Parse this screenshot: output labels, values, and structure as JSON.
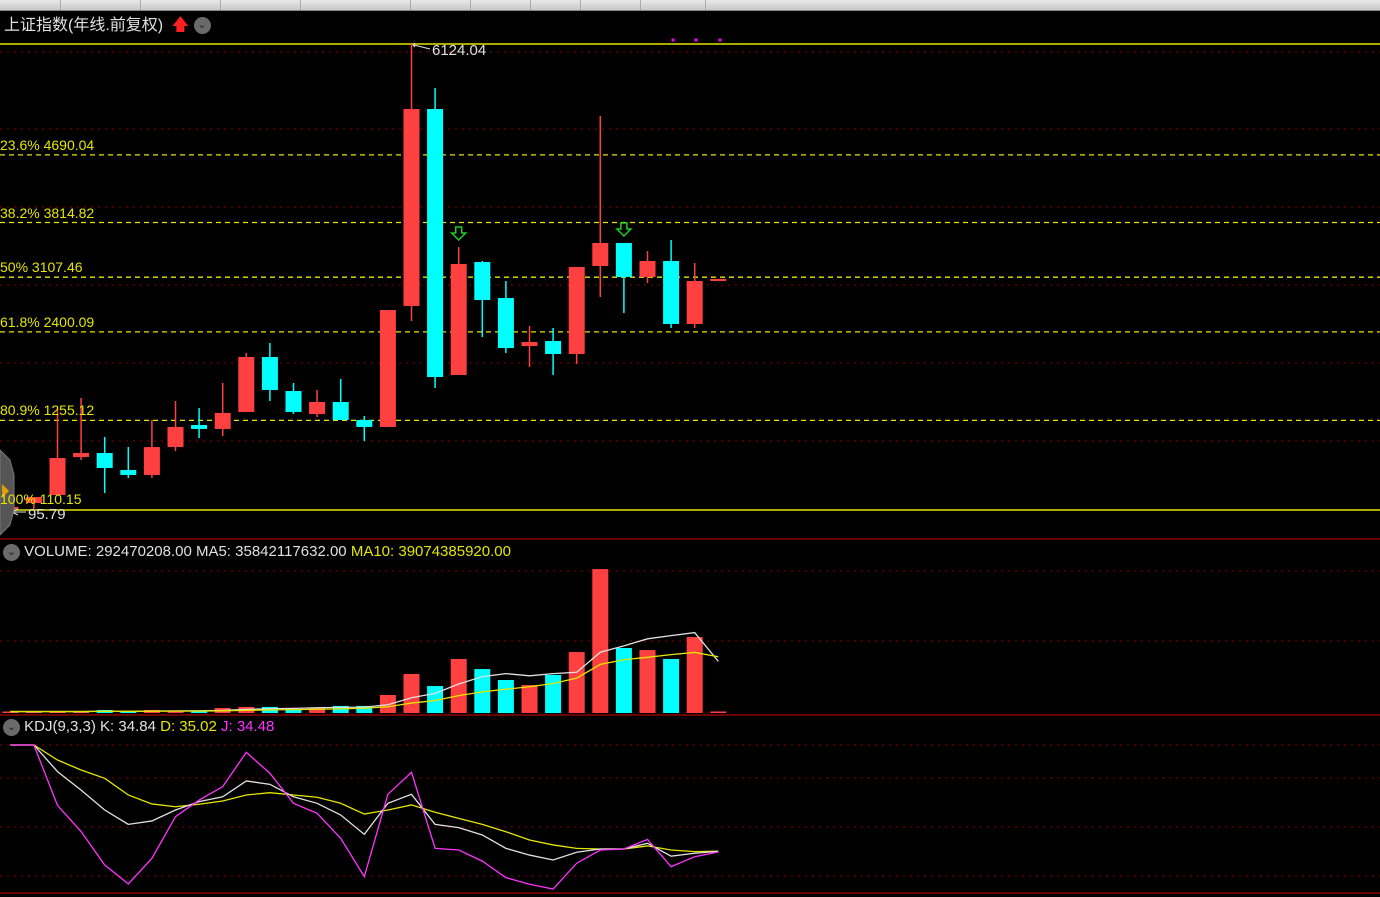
{
  "header": {
    "title": "上证指数(年线.前复权)",
    "trend_icon": "red-up-arrow-icon",
    "menu_icon": "chevron-down-icon"
  },
  "colors": {
    "up": "#ff4040",
    "down": "#00ffff",
    "fib_line": "#e6e600",
    "grid": "#8b0000",
    "ma5": "#e0e0e0",
    "ma10": "#e6e600",
    "k": "#e0e0e0",
    "d": "#e6e600",
    "j": "#ff33ff"
  },
  "price_panel": {
    "high_label": "6124.04",
    "low_label": "95.79",
    "fib_levels": [
      {
        "label": "23.6% 4690.04",
        "price": 4690.04
      },
      {
        "label": "38.2% 3814.82",
        "price": 3814.82
      },
      {
        "label": "50% 3107.46",
        "price": 3107.46
      },
      {
        "label": "61.8% 2400.09",
        "price": 2400.09
      },
      {
        "label": "80.9% 1255.12",
        "price": 1255.12
      },
      {
        "label": "100% 110.15",
        "price": 110.15
      }
    ],
    "sell_signal_icon": "green-down-arrow-icon"
  },
  "volume_panel": {
    "label": "VOLUME: 292470208.00",
    "ma5_label": "MA5: 35842117632.00",
    "ma10_label": "MA10: 39074385920.00"
  },
  "kdj_panel": {
    "label": "KDJ(9,3,3)",
    "k_label": "K: 34.84",
    "d_label": "D: 35.02",
    "j_label": "J: 34.48"
  },
  "chart_data": [
    {
      "type": "candlestick",
      "title": "上证指数(年线.前复权)",
      "ylim": [
        95.79,
        6124.04
      ],
      "grid": true,
      "candles": [
        {
          "o": 120,
          "h": 140,
          "l": 100,
          "c": 135
        },
        {
          "o": 186,
          "h": 264,
          "l": 96,
          "c": 264
        },
        {
          "o": 290,
          "h": 1415,
          "l": 290,
          "c": 768
        },
        {
          "o": 781,
          "h": 1545,
          "l": 743,
          "c": 833
        },
        {
          "o": 833,
          "h": 1040,
          "l": 316,
          "c": 639
        },
        {
          "o": 613,
          "h": 910,
          "l": 510,
          "c": 549
        },
        {
          "o": 549,
          "h": 1260,
          "l": 510,
          "c": 910
        },
        {
          "o": 910,
          "h": 1506,
          "l": 859,
          "c": 1170
        },
        {
          "o": 1195,
          "h": 1415,
          "l": 1027,
          "c": 1144
        },
        {
          "o": 1144,
          "h": 1739,
          "l": 1053,
          "c": 1351
        },
        {
          "o": 1364,
          "h": 2127,
          "l": 1364,
          "c": 2075
        },
        {
          "o": 2075,
          "h": 2256,
          "l": 1506,
          "c": 1648
        },
        {
          "o": 1635,
          "h": 1739,
          "l": 1338,
          "c": 1364
        },
        {
          "o": 1338,
          "h": 1648,
          "l": 1299,
          "c": 1493
        },
        {
          "o": 1493,
          "h": 1790,
          "l": 1260,
          "c": 1260
        },
        {
          "o": 1260,
          "h": 1312,
          "l": 988,
          "c": 1170
        },
        {
          "o": 1170,
          "h": 2683,
          "l": 1170,
          "c": 2683
        },
        {
          "o": 2735,
          "h": 6124.04,
          "l": 2541,
          "c": 5283
        },
        {
          "o": 5283,
          "h": 5555,
          "l": 1674,
          "c": 1816
        },
        {
          "o": 1842,
          "h": 3498,
          "l": 1842,
          "c": 3278
        },
        {
          "o": 3304,
          "h": 3317,
          "l": 2334,
          "c": 2812
        },
        {
          "o": 2838,
          "h": 3058,
          "l": 2127,
          "c": 2191
        },
        {
          "o": 2217,
          "h": 2476,
          "l": 1946,
          "c": 2269
        },
        {
          "o": 2282,
          "h": 2450,
          "l": 1842,
          "c": 2114
        },
        {
          "o": 2114,
          "h": 3239,
          "l": 1985,
          "c": 3239
        },
        {
          "o": 3252,
          "h": 5193,
          "l": 2851,
          "c": 3550
        },
        {
          "o": 3550,
          "h": 3550,
          "l": 2644,
          "c": 3110
        },
        {
          "o": 3110,
          "h": 3446,
          "l": 3032,
          "c": 3317
        },
        {
          "o": 3317,
          "h": 3588,
          "l": 2450,
          "c": 2502
        },
        {
          "o": 2502,
          "h": 3291,
          "l": 2450,
          "c": 3058
        },
        {
          "o": 3084,
          "h": 3084,
          "l": 3084,
          "c": 3084
        }
      ],
      "sell_signals": [
        19,
        26
      ]
    },
    {
      "type": "bar",
      "title": "VOLUME",
      "values": [
        1000000000.0,
        1000000000.0,
        1000000000.0,
        1000000000.0,
        2100000000.0,
        700000000.0,
        2100000000.0,
        1400000000.0,
        1400000000.0,
        3500000000.0,
        4200000000.0,
        4200000000.0,
        2800000000.0,
        3500000000.0,
        4900000000.0,
        4900000000.0,
        12500000000.0,
        27100000000.0,
        18700000000.0,
        37500000000.0,
        30500000000.0,
        22900000000.0,
        19400000000.0,
        26400000000.0,
        42300000000.0,
        99900000000.0,
        45100000000.0,
        43700000000.0,
        37500000000.0,
        52700000000.0,
        292470208
      ],
      "series": [
        {
          "name": "MA5",
          "computed_from": "values",
          "period": 5
        },
        {
          "name": "MA10",
          "computed_from": "values",
          "period": 10
        }
      ]
    },
    {
      "type": "line",
      "title": "KDJ(9,3,3)",
      "ylim": [
        0,
        100
      ],
      "series": [
        {
          "name": "K",
          "values": [
            100,
            100,
            83.7,
            72.4,
            60.2,
            51.4,
            53.5,
            60.2,
            65.3,
            68.3,
            78,
            75.9,
            68.3,
            64.3,
            57.1,
            45.3,
            64.3,
            69.8,
            51.4,
            49.4,
            44.9,
            36.7,
            32.6,
            29.6,
            34.3,
            36.3,
            36.3,
            39.8,
            31.9,
            33.7,
            34.84
          ]
        },
        {
          "name": "D",
          "values": [
            100,
            100,
            90.8,
            84.7,
            79.6,
            69.4,
            63.9,
            62.2,
            63.7,
            65.7,
            69.4,
            70.8,
            69.4,
            68,
            64.3,
            57.7,
            60.2,
            63.3,
            58.8,
            55.1,
            51.4,
            46.9,
            41.8,
            38.8,
            36.7,
            36.3,
            36.3,
            38.2,
            35.7,
            34.7,
            35.02
          ]
        },
        {
          "name": "J",
          "values": [
            100,
            100,
            63,
            47,
            26.5,
            14.9,
            30.6,
            56.1,
            66.3,
            74.5,
            95.5,
            82.7,
            64.3,
            58.2,
            42.9,
            19.4,
            69.8,
            83.3,
            36.7,
            35.7,
            28.9,
            18.8,
            14.7,
            11.8,
            27.6,
            35.7,
            36.3,
            42.2,
            25.5,
            31.6,
            34.48
          ]
        }
      ]
    }
  ]
}
